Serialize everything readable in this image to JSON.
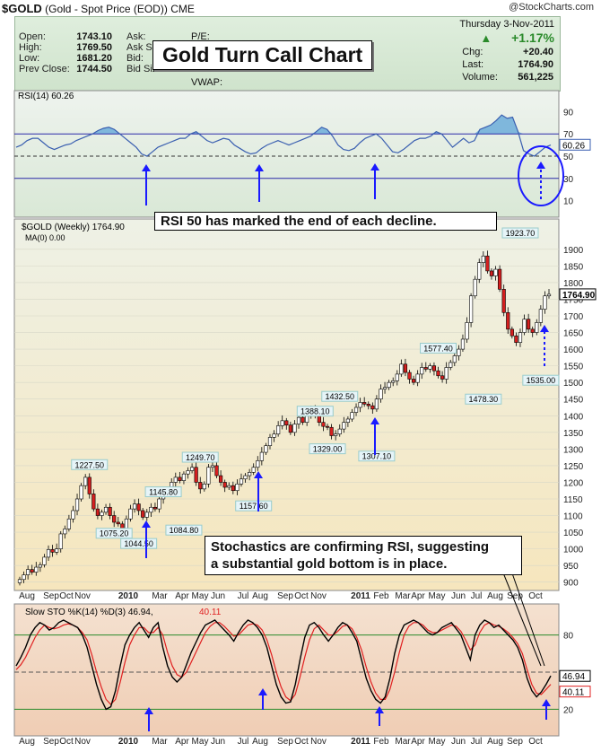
{
  "header": {
    "symbol": "$GOLD",
    "description": "(Gold - Spot Price (EOD))",
    "exchange": "CME",
    "watermark": "@StockCharts.com"
  },
  "quote": {
    "open_label": "Open:",
    "open": "1743.10",
    "high_label": "High:",
    "high": "1769.50",
    "low_label": "Low:",
    "low": "1681.20",
    "prev_label": "Prev Close:",
    "prev": "1744.50",
    "ask_label": "Ask:",
    "asksize_label": "Ask Si",
    "bid_label": "Bid:",
    "bidsize_label": "Bid Size:",
    "pe_label": "P/E:",
    "vwap_label": "VWAP:",
    "date": "Thursday 3-Nov-2011",
    "change_pct": "+1.17%",
    "chg_label": "Chg:",
    "chg": "+20.40",
    "last_label": "Last:",
    "last": "1764.90",
    "volume_label": "Volume:",
    "volume": "561,225"
  },
  "annotations": {
    "title": "Gold Turn Call Chart",
    "rsi_note": "RSI 50 has marked the end of each decline.",
    "sto_note_line1": "Stochastics are confirming RSI, suggesting",
    "sto_note_line2": "a substantial gold bottom is in place."
  },
  "colors": {
    "up_candle": "#ffffff",
    "down_candle": "#d61f1f",
    "rsi_fill": "#7fb7dc",
    "arrow": "#1a1aff",
    "sto_k": "#000000",
    "sto_d": "#e02020",
    "quote_bg": "#d6e8d3",
    "price_bg_top": "#eef1e6",
    "price_bg_bottom": "#f5e9c7",
    "sto_bg": "#f3d8c4"
  },
  "chart_data": [
    {
      "type": "line",
      "name": "rsi",
      "legend": "RSI(14) 60.26",
      "ylim": [
        0,
        100
      ],
      "yticks": [
        90,
        70,
        50,
        30,
        10
      ],
      "hlines": [
        70,
        50,
        30
      ],
      "last_label": "60.26",
      "values": [
        58,
        60,
        64,
        66,
        66,
        62,
        58,
        56,
        58,
        60,
        61,
        64,
        66,
        68,
        70,
        73,
        75,
        76,
        74,
        70,
        66,
        62,
        58,
        52,
        50,
        54,
        58,
        60,
        62,
        64,
        66,
        66,
        70,
        72,
        68,
        64,
        62,
        64,
        66,
        65,
        60,
        57,
        54,
        52,
        53,
        57,
        60,
        62,
        64,
        62,
        60,
        62,
        64,
        66,
        68,
        72,
        76,
        74,
        68,
        60,
        56,
        55,
        57,
        62,
        66,
        68,
        70,
        66,
        60,
        54,
        53,
        56,
        60,
        64,
        66,
        66,
        68,
        72,
        70,
        64,
        58,
        62,
        66,
        62,
        64,
        74,
        76,
        78,
        82,
        87,
        84,
        85,
        72,
        55,
        52,
        50,
        54,
        58,
        60
      ]
    },
    {
      "type": "candlestick",
      "name": "price",
      "legend": "$GOLD (Weekly) 1764.90",
      "legend2": "MA(0) 0.00",
      "ylim": [
        875,
        1975
      ],
      "yticks": [
        900,
        950,
        1000,
        1050,
        1100,
        1150,
        1200,
        1250,
        1300,
        1350,
        1400,
        1450,
        1500,
        1550,
        1600,
        1650,
        1700,
        1750,
        1800,
        1850,
        1900
      ],
      "last_label": "1764.90",
      "x_labels": [
        "Aug",
        "Sep",
        "Oct",
        "Nov",
        "2010",
        "Mar",
        "Apr",
        "May",
        "Jun",
        "Jul",
        "Aug",
        "Sep",
        "Oct",
        "Nov",
        "2011",
        "Feb",
        "Mar",
        "Apr",
        "May",
        "Jun",
        "Jul",
        "Aug",
        "Sep",
        "Oct"
      ],
      "close": [
        908,
        922,
        938,
        930,
        945,
        952,
        975,
        998,
        990,
        1000,
        1045,
        1060,
        1090,
        1115,
        1150,
        1190,
        1215,
        1165,
        1120,
        1100,
        1110,
        1125,
        1100,
        1080,
        1075,
        1055,
        1090,
        1120,
        1135,
        1115,
        1095,
        1110,
        1125,
        1120,
        1150,
        1170,
        1175,
        1200,
        1215,
        1205,
        1225,
        1235,
        1245,
        1200,
        1180,
        1195,
        1245,
        1250,
        1220,
        1200,
        1185,
        1190,
        1175,
        1195,
        1210,
        1220,
        1230,
        1245,
        1265,
        1290,
        1310,
        1335,
        1345,
        1370,
        1385,
        1372,
        1350,
        1375,
        1395,
        1380,
        1405,
        1420,
        1400,
        1380,
        1368,
        1365,
        1340,
        1345,
        1360,
        1380,
        1390,
        1410,
        1425,
        1440,
        1435,
        1430,
        1420,
        1450,
        1480,
        1485,
        1500,
        1505,
        1525,
        1555,
        1530,
        1510,
        1500,
        1525,
        1545,
        1540,
        1550,
        1535,
        1520,
        1510,
        1545,
        1560,
        1580,
        1600,
        1630,
        1680,
        1760,
        1810,
        1860,
        1880,
        1835,
        1820,
        1840,
        1780,
        1710,
        1660,
        1640,
        1620,
        1650,
        1690,
        1660,
        1650,
        1680,
        1720,
        1760,
        1764.9
      ],
      "labels": [
        {
          "text": "1227.50",
          "x": 16,
          "y": 1227.5
        },
        {
          "text": "1075.20",
          "x": 21,
          "y": 1075.2
        },
        {
          "text": "1044.50",
          "x": 27,
          "y": 1044.5
        },
        {
          "text": "1145.80",
          "x": 32,
          "y": 1145.8
        },
        {
          "text": "1084.80",
          "x": 37,
          "y": 1084.8
        },
        {
          "text": "1249.70",
          "x": 41,
          "y": 1249.7
        },
        {
          "text": "1157.60",
          "x": 53,
          "y": 1157.6
        },
        {
          "text": "1388.10",
          "x": 66,
          "y": 1388.1
        },
        {
          "text": "1329.00",
          "x": 69,
          "y": 1329.0
        },
        {
          "text": "1432.50",
          "x": 72,
          "y": 1432.5
        },
        {
          "text": "1307.10",
          "x": 80,
          "y": 1307.1
        },
        {
          "text": "1577.40",
          "x": 94,
          "y": 1577.4
        },
        {
          "text": "1478.30",
          "x": 104,
          "y": 1478.3
        },
        {
          "text": "1923.70",
          "x": 113,
          "y": 1923.7
        },
        {
          "text": "1535.00",
          "x": 117,
          "y": 1535.0
        }
      ]
    },
    {
      "type": "line",
      "name": "slow_stochastic",
      "legend_k": "Slow STO %K(14) %D(3) 46.94,",
      "legend_d": "40.11",
      "ylim": [
        0,
        100
      ],
      "yticks": [
        80,
        20
      ],
      "hlines": [
        80,
        50,
        20
      ],
      "k_last_label": "46.94",
      "d_last_label": "40.11",
      "k": [
        55,
        62,
        70,
        80,
        86,
        90,
        88,
        84,
        86,
        90,
        92,
        90,
        88,
        86,
        80,
        70,
        55,
        40,
        28,
        20,
        22,
        35,
        55,
        72,
        80,
        86,
        90,
        84,
        78,
        86,
        90,
        70,
        55,
        46,
        42,
        46,
        56,
        66,
        74,
        82,
        88,
        90,
        92,
        88,
        84,
        80,
        75,
        82,
        88,
        92,
        90,
        86,
        80,
        70,
        55,
        40,
        30,
        25,
        26,
        40,
        60,
        78,
        88,
        90,
        86,
        80,
        75,
        80,
        86,
        90,
        88,
        82,
        75,
        60,
        45,
        35,
        28,
        25,
        30,
        45,
        65,
        80,
        88,
        90,
        92,
        90,
        86,
        82,
        80,
        82,
        86,
        88,
        90,
        85,
        80,
        70,
        60,
        80,
        88,
        92,
        90,
        86,
        88,
        84,
        80,
        76,
        70,
        60,
        45,
        35,
        30,
        34,
        40,
        47
      ],
      "d": [
        52,
        56,
        62,
        70,
        78,
        84,
        88,
        86,
        85,
        86,
        88,
        89,
        88,
        86,
        82,
        76,
        64,
        50,
        38,
        28,
        24,
        28,
        42,
        58,
        72,
        80,
        86,
        86,
        82,
        82,
        86,
        80,
        66,
        55,
        48,
        46,
        50,
        58,
        66,
        74,
        82,
        87,
        90,
        90,
        87,
        83,
        79,
        80,
        84,
        88,
        89,
        88,
        84,
        76,
        64,
        50,
        38,
        30,
        27,
        32,
        46,
        62,
        76,
        85,
        88,
        84,
        80,
        80,
        83,
        87,
        88,
        85,
        78,
        68,
        54,
        42,
        33,
        28,
        28,
        36,
        50,
        66,
        80,
        87,
        90,
        90,
        88,
        84,
        82,
        82,
        84,
        86,
        88,
        87,
        83,
        76,
        68,
        72,
        82,
        88,
        90,
        88,
        87,
        85,
        82,
        78,
        73,
        65,
        52,
        40,
        33,
        32,
        36,
        40.11
      ]
    }
  ],
  "x_axis": [
    "Aug",
    "Sep",
    "Oct",
    "Nov",
    "2010",
    "Mar",
    "Apr",
    "May",
    "Jun",
    "Jul",
    "Aug",
    "Sep",
    "Oct",
    "Nov",
    "2011",
    "Feb",
    "Mar",
    "Apr",
    "May",
    "Jun",
    "Jul",
    "Aug",
    "Sep",
    "Oct"
  ]
}
